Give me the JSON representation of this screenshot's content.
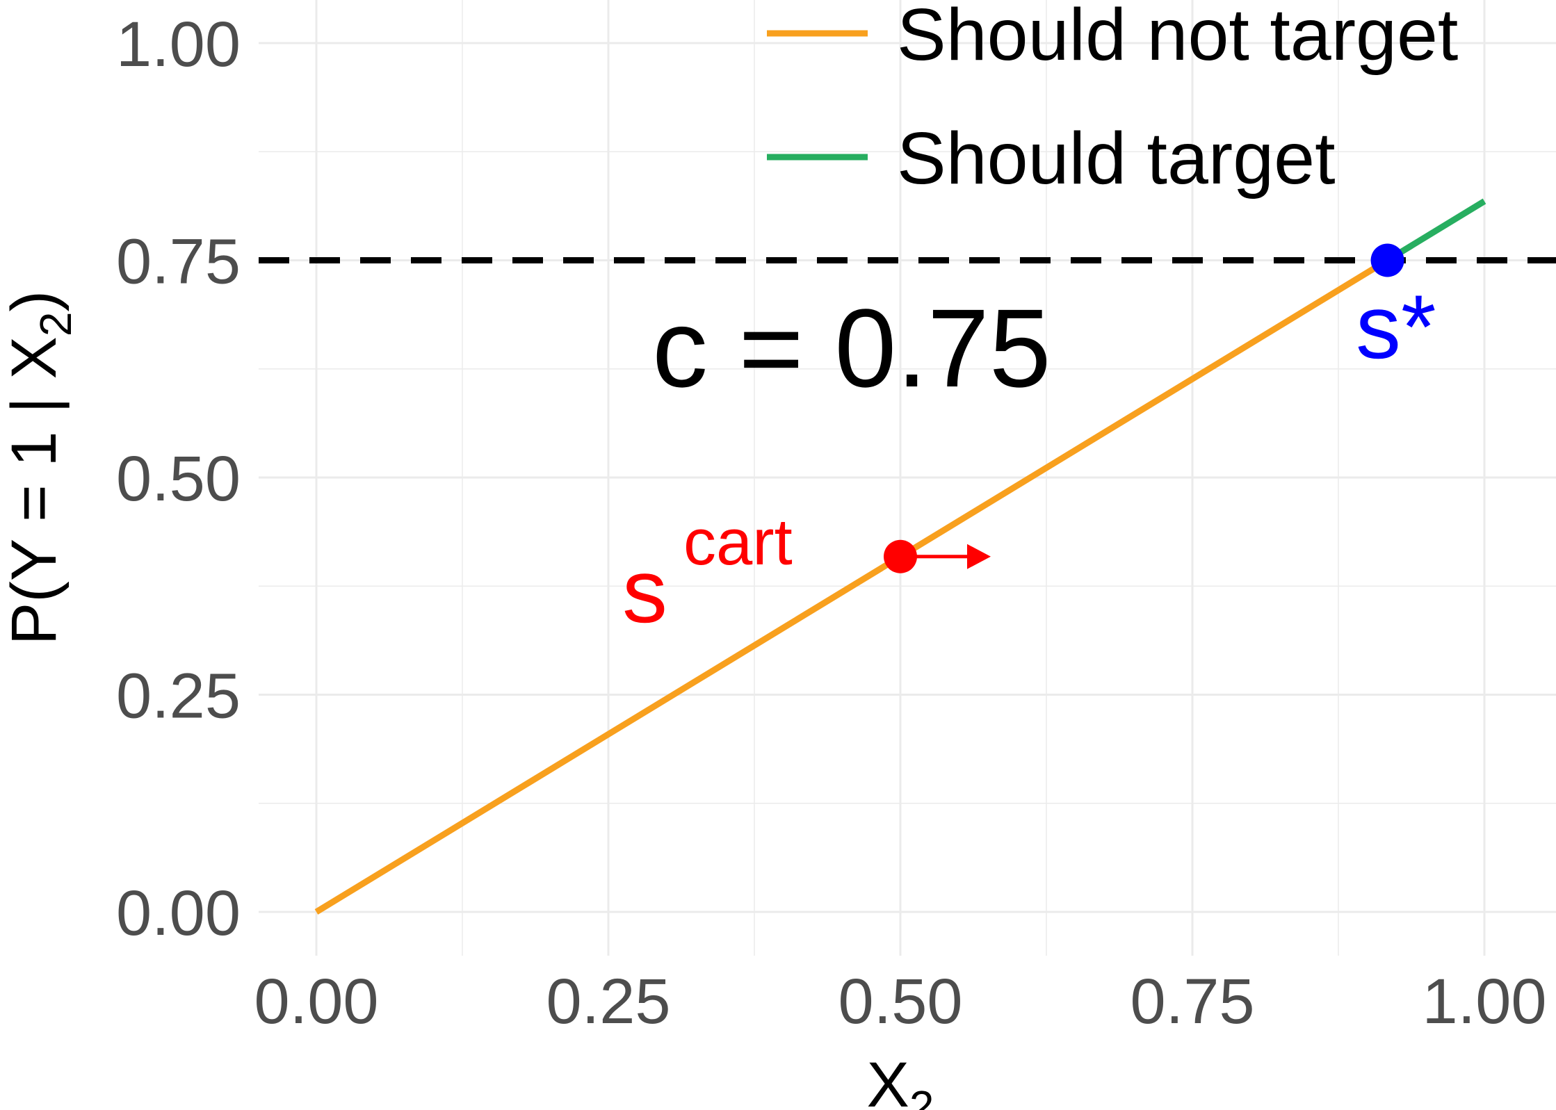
{
  "chart_data": {
    "type": "line",
    "xlabel": "X",
    "xlabel_sub": "2",
    "ylabel_prefix": "P(Y = 1 | X",
    "ylabel_sub": "2",
    "ylabel_suffix": ")",
    "xlim": [
      0,
      1
    ],
    "ylim": [
      0,
      1
    ],
    "x_ticks": [
      "0.00",
      "0.25",
      "0.50",
      "0.75",
      "1.00"
    ],
    "y_ticks": [
      "0.00",
      "0.25",
      "0.50",
      "0.75",
      "1.00"
    ],
    "grid": true,
    "legend_position": "top-right",
    "series": [
      {
        "name": "Should not target",
        "color": "#F8A01E",
        "x": [
          0,
          0.917
        ],
        "y": [
          0,
          0.75
        ]
      },
      {
        "name": "Should target",
        "color": "#27AE60",
        "x": [
          0.917,
          1.0
        ],
        "y": [
          0.75,
          0.818
        ]
      }
    ],
    "threshold": {
      "y": 0.75,
      "style": "dashed",
      "color": "#000000",
      "label": "c = 0.75"
    },
    "points": [
      {
        "label": "s",
        "superscript": "cart",
        "x": 0.5,
        "y": 0.409,
        "color": "#FF0000",
        "arrow": "right"
      },
      {
        "label": "s*",
        "x": 0.917,
        "y": 0.75,
        "color": "#0000FF"
      }
    ]
  }
}
